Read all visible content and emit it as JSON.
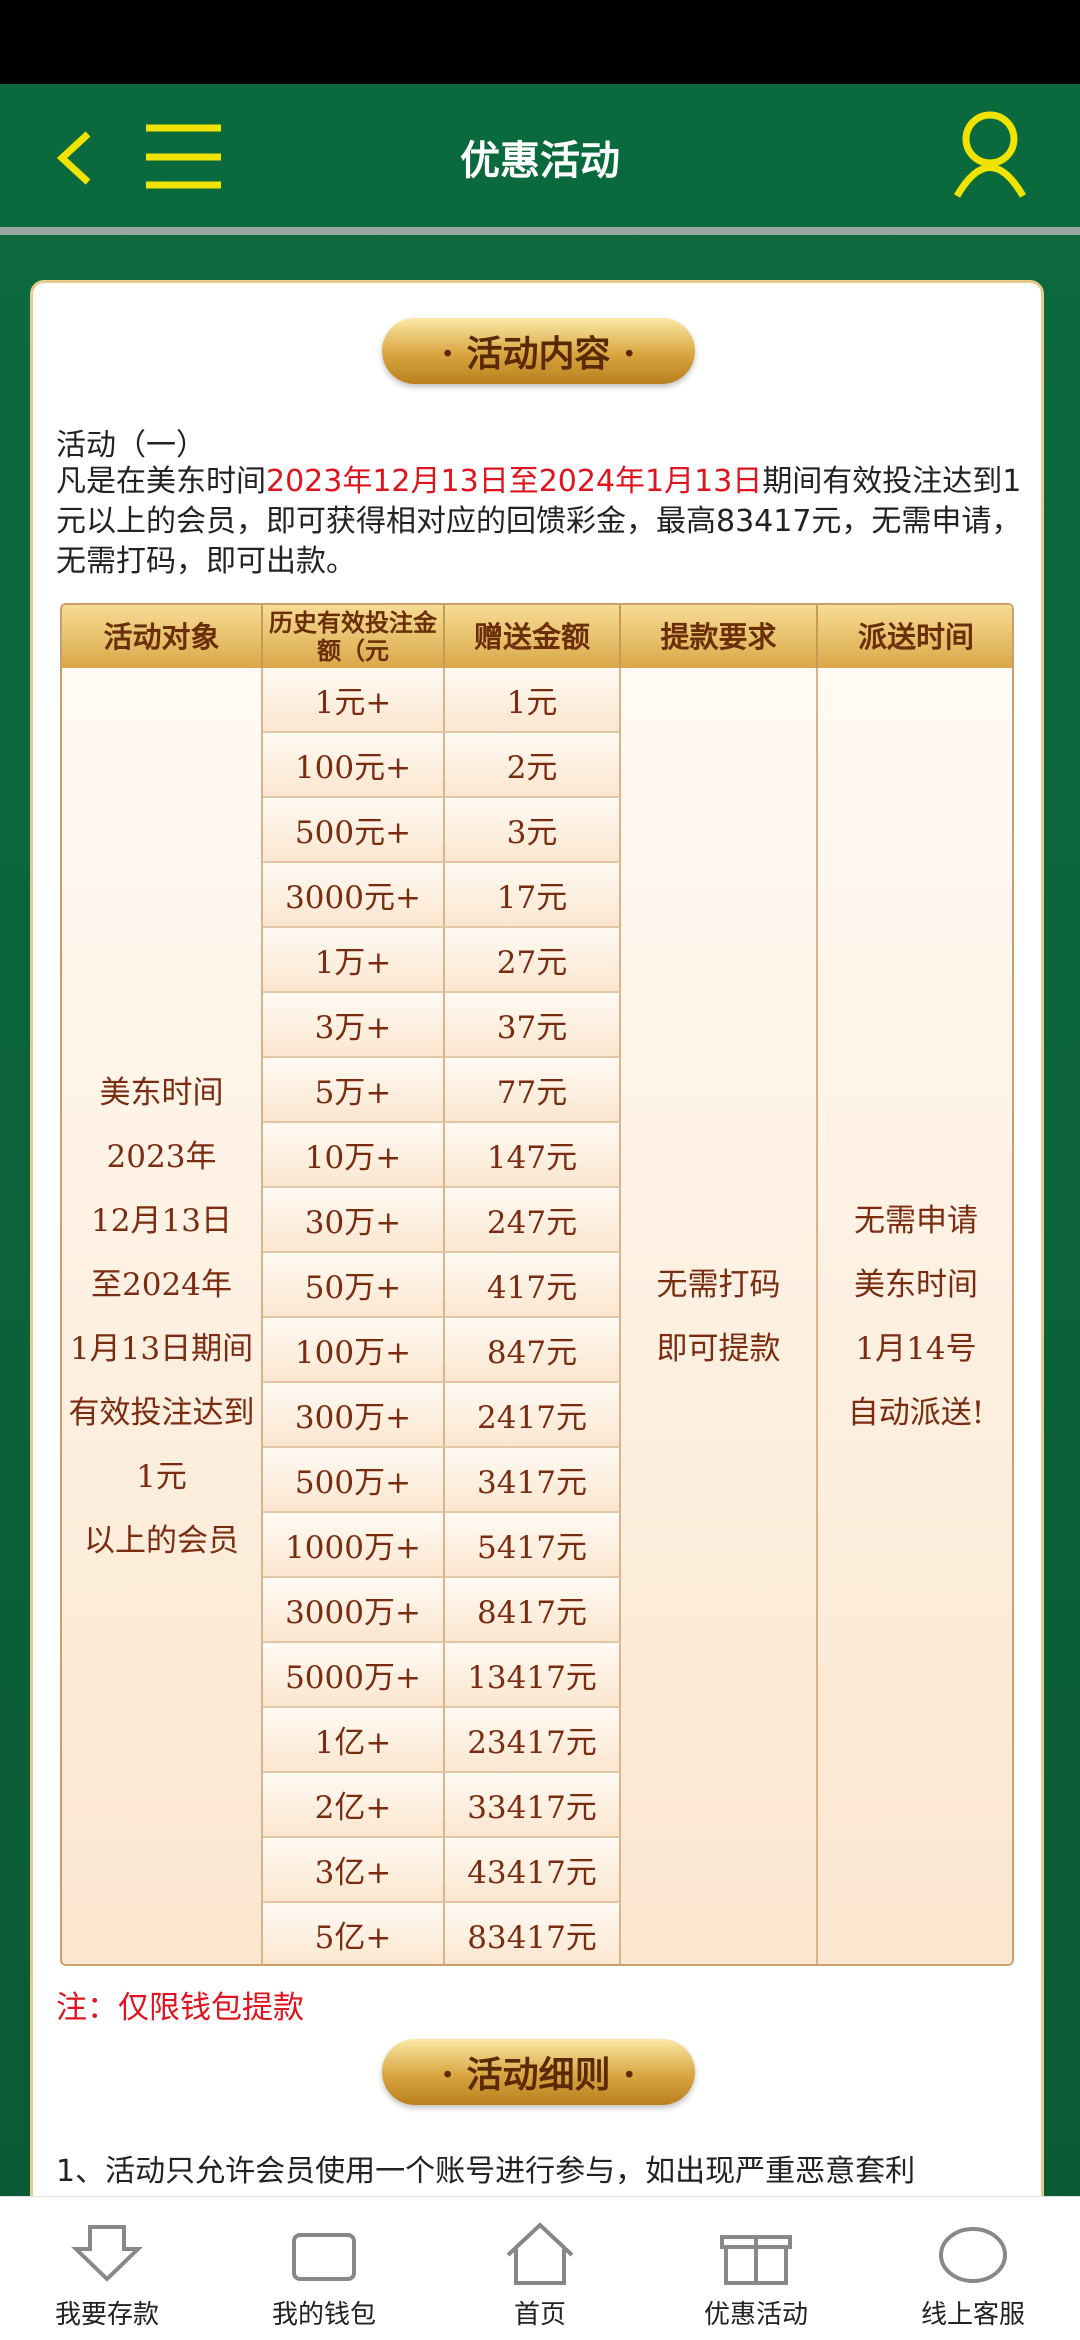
{
  "header": {
    "title": "优惠活动"
  },
  "section1": {
    "title": "· 活动内容 ·"
  },
  "intro": {
    "heading": "活动（一）",
    "text_before": "凡是在美东时间",
    "text_highlight": "2023年12月13日至2024年1月13日",
    "text_after": "期间有效投注达到1元以上的会员，即可获得相对应的回馈彩金，最高83417元，无需申请，无需打码，即可出款。"
  },
  "table": {
    "headers": [
      "活动对象",
      "历史有效投注金额（元",
      "赠送金额",
      "提款要求",
      "派送时间"
    ],
    "target": [
      "美东时间",
      "2023年",
      "12月13日",
      "至2024年",
      "1月13日期间",
      "有效投注达到",
      "1元",
      "以上的会员"
    ],
    "rows": [
      [
        "1元+",
        "1元"
      ],
      [
        "100元+",
        "2元"
      ],
      [
        "500元+",
        "3元"
      ],
      [
        "3000元+",
        "17元"
      ],
      [
        "1万+",
        "27元"
      ],
      [
        "3万+",
        "37元"
      ],
      [
        "5万+",
        "77元"
      ],
      [
        "10万+",
        "147元"
      ],
      [
        "30万+",
        "247元"
      ],
      [
        "50万+",
        "417元"
      ],
      [
        "100万+",
        "847元"
      ],
      [
        "300万+",
        "2417元"
      ],
      [
        "500万+",
        "3417元"
      ],
      [
        "1000万+",
        "5417元"
      ],
      [
        "3000万+",
        "8417元"
      ],
      [
        "5000万+",
        "13417元"
      ],
      [
        "1亿+",
        "23417元"
      ],
      [
        "2亿+",
        "33417元"
      ],
      [
        "3亿+",
        "43417元"
      ],
      [
        "5亿+",
        "83417元"
      ]
    ],
    "withdrawal": [
      "无需打码",
      "即可提款"
    ],
    "delivery": [
      "无需申请",
      "美东时间",
      "1月14号",
      "自动派送!"
    ]
  },
  "note": "注：仅限钱包提款",
  "section2": {
    "title": "· 活动细则 ·"
  },
  "rules": [
    "1、活动只允许会员使用一个账号进行参与，如出现严重恶意套利"
  ],
  "nav": [
    "我要存款",
    "我的钱包",
    "首页",
    "优惠活动",
    "线上客服"
  ]
}
